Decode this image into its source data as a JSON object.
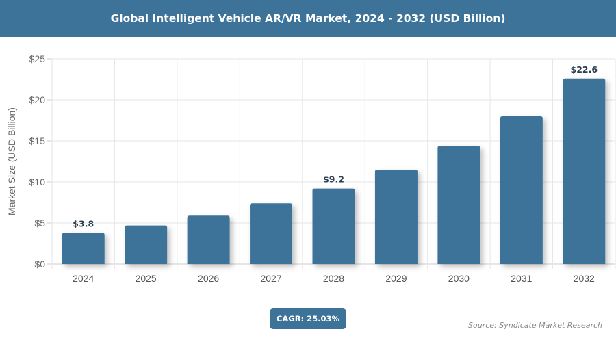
{
  "header": {
    "title": "Global Intelligent Vehicle AR/VR Market, 2024 - 2032 (USD Billion)"
  },
  "footer": {
    "cagr": "CAGR: 25.03%",
    "source": "Source: Syndicate Market Research"
  },
  "colors": {
    "bar": "#3d7399",
    "header": "#3d7399",
    "label": "#2b3e50"
  },
  "chart_data": {
    "type": "bar",
    "title": "Global Intelligent Vehicle AR/VR Market, 2024 - 2032 (USD Billion)",
    "xlabel": "",
    "ylabel": "Market Size (USD Billion)",
    "categories": [
      "2024",
      "2025",
      "2026",
      "2027",
      "2028",
      "2029",
      "2030",
      "2031",
      "2032"
    ],
    "values": [
      3.8,
      4.7,
      5.9,
      7.4,
      9.2,
      11.5,
      14.4,
      18.0,
      22.6
    ],
    "data_labels": {
      "2024": "$3.8",
      "2028": "$9.2",
      "2032": "$22.6"
    },
    "ylim": [
      0,
      25
    ],
    "yticks": [
      "$0",
      "$5",
      "$10",
      "$15",
      "$20",
      "$25"
    ],
    "grid": true,
    "legend": "none"
  }
}
